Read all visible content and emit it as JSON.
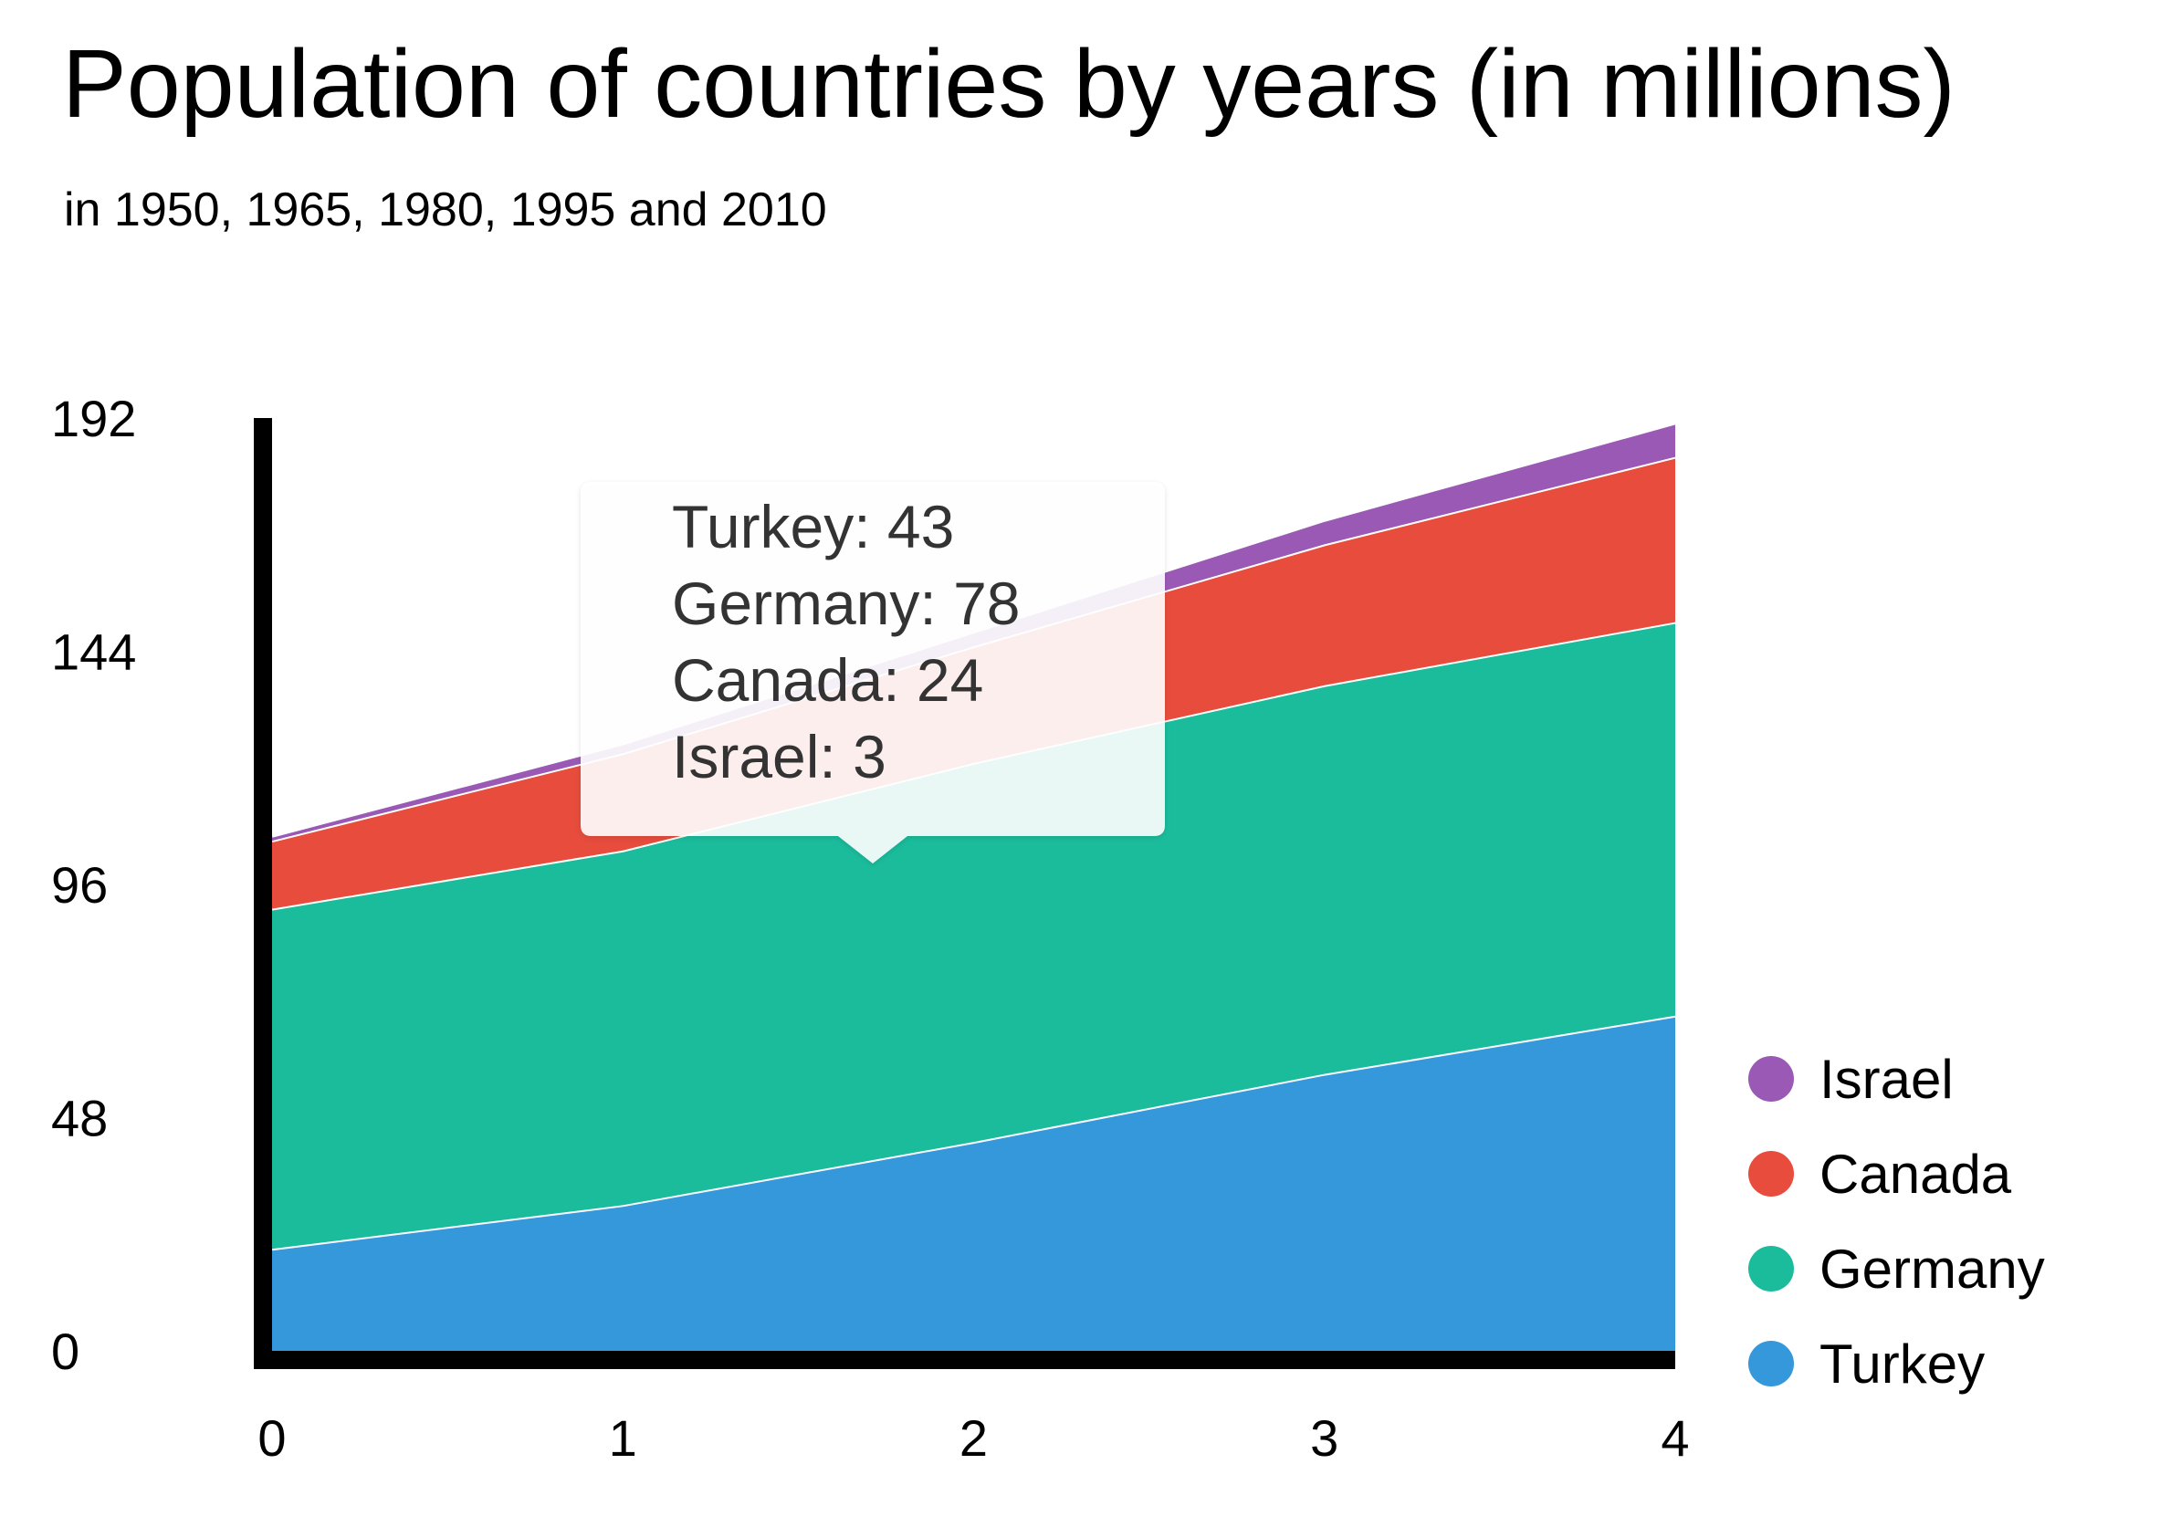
{
  "title": "Population of countries by years (in millions)",
  "subtitle": "in 1950, 1965, 1980, 1995 and 2010",
  "chart_data": {
    "type": "area",
    "stacked": true,
    "title": "Population of countries by years (in millions)",
    "subtitle": "in 1950, 1965, 1980, 1995 and 2010",
    "x": [
      0,
      1,
      2,
      3,
      4
    ],
    "x_tick_labels": [
      "0",
      "1",
      "2",
      "3",
      "4"
    ],
    "ylim": [
      0,
      192
    ],
    "y_ticks": [
      0,
      48,
      96,
      144,
      192
    ],
    "y_tick_labels": [
      "0",
      "48",
      "96",
      "144",
      "192"
    ],
    "xlabel": "",
    "ylabel": "",
    "grid": false,
    "legend_position": "right",
    "series": [
      {
        "name": "Turkey",
        "color": "#3498db",
        "values": [
          21,
          30,
          43,
          57,
          69
        ]
      },
      {
        "name": "Germany",
        "color": "#1abc9c",
        "values": [
          70,
          73,
          78,
          80,
          81
        ]
      },
      {
        "name": "Canada",
        "color": "#e74c3c",
        "values": [
          14,
          20,
          24,
          29,
          34
        ]
      },
      {
        "name": "Israel",
        "color": "#9b59b6",
        "values": [
          1,
          2,
          3,
          5,
          7
        ]
      }
    ],
    "legend": [
      "Israel",
      "Canada",
      "Germany",
      "Turkey"
    ],
    "tooltip": {
      "x_index": 2,
      "lines": [
        "Turkey: 43",
        "Germany: 78",
        "Canada: 24",
        "Israel: 3"
      ]
    }
  }
}
